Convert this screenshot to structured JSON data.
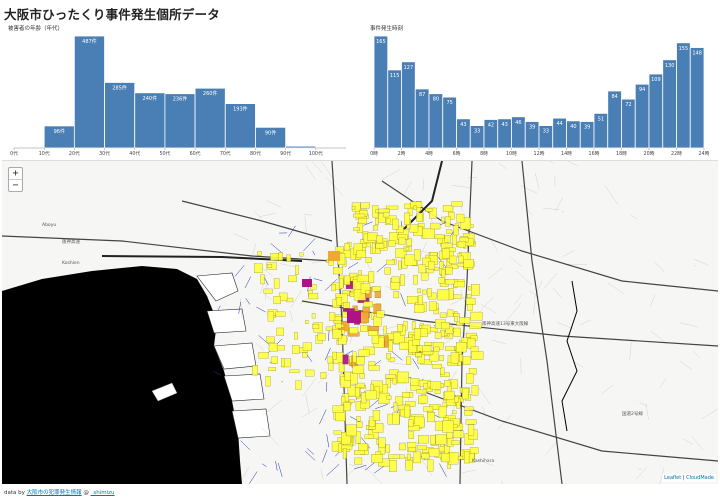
{
  "title": "大阪市ひったくり事件発生個所データ",
  "colors": {
    "bar": "#4a7fb5",
    "bar_stroke": "#ffffff",
    "choropleth_low": "#ffff44",
    "choropleth_mid": "#f0a830",
    "choropleth_high": "#b01088",
    "sea": "#000000",
    "road_blue": "#2233aa"
  },
  "chart_data": [
    {
      "type": "bar",
      "ylabel": "被害者の年齢（年代）",
      "categories": [
        "0代",
        "10代",
        "20代",
        "30代",
        "40代",
        "50代",
        "60代",
        "70代",
        "80代",
        "90代",
        "100代"
      ],
      "tick_labels": [
        "0代",
        "10代",
        "20代",
        "30代",
        "40代",
        "50代",
        "60代",
        "70代",
        "80代",
        "90代",
        "100代"
      ],
      "values": [
        0,
        96,
        487,
        285,
        240,
        236,
        260,
        193,
        90,
        8,
        0
      ],
      "data_labels": [
        "",
        "96件",
        "487件",
        "285件",
        "240件",
        "236件",
        "260件",
        "193件",
        "90件",
        "",
        ""
      ],
      "grid": false
    },
    {
      "type": "bar",
      "ylabel": "事件発生時刻",
      "categories": [
        "0時",
        "1時",
        "2時",
        "3時",
        "4時",
        "5時",
        "6時",
        "7時",
        "8時",
        "9時",
        "10時",
        "11時",
        "12時",
        "13時",
        "14時",
        "15時",
        "16時",
        "17時",
        "18時",
        "19時",
        "20時",
        "21時",
        "22時",
        "23時"
      ],
      "tick_labels": [
        "0時",
        "2時",
        "4時",
        "6時",
        "8時",
        "10時",
        "12時",
        "14時",
        "16時",
        "18時",
        "20時",
        "22時",
        "24時"
      ],
      "values": [
        165,
        115,
        127,
        87,
        80,
        75,
        43,
        33,
        42,
        43,
        46,
        39,
        33,
        44,
        40,
        39,
        51,
        84,
        72,
        94,
        109,
        130,
        155,
        148
      ],
      "data_labels": [
        "165",
        "115",
        "127",
        "87",
        "80",
        "75",
        "43",
        "33",
        "42",
        "43",
        "46",
        "39",
        "33",
        "44",
        "40",
        "39",
        "51",
        "84",
        "72",
        "94",
        "109",
        "130",
        "155",
        "148"
      ],
      "grid": false
    }
  ],
  "map": {
    "zoom_in": "+",
    "zoom_out": "−",
    "attribution_leaflet": "Leaflet",
    "attribution_sep": " | ",
    "attribution_cm": "CloudMade",
    "labels": [
      "Kashihara",
      "阪神高速",
      "国道2号線",
      "Aboyu",
      "阪神高速13号東大阪線",
      "Koshien"
    ]
  },
  "footer": {
    "prefix": "data by ",
    "source_link": "大阪市の犯罪発生情報",
    "at": " @ ",
    "user_link": "_shimizu"
  }
}
